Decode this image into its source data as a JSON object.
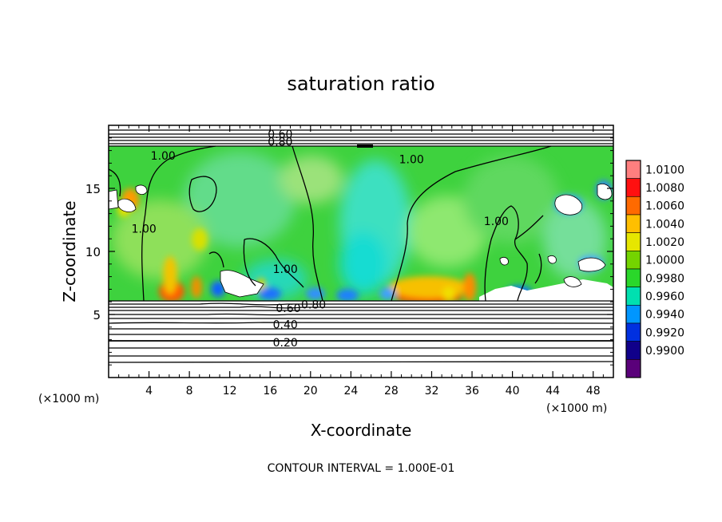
{
  "chart_data": {
    "type": "heatmap",
    "title": "saturation ratio",
    "xlabel": "X-coordinate",
    "ylabel": "Z-coordinate",
    "x_unit_left": "(×1000 m)",
    "x_unit_right": "(×1000 m)",
    "xlim": [
      0,
      50
    ],
    "ylim": [
      0,
      20
    ],
    "x_ticks": [
      4,
      8,
      12,
      16,
      20,
      24,
      28,
      32,
      36,
      40,
      44,
      48
    ],
    "y_ticks": [
      5,
      10,
      15
    ],
    "grid": false,
    "footer": "CONTOUR INTERVAL = 1.000E-01",
    "colorbar": {
      "levels": [
        "1.0100",
        "1.0080",
        "1.0060",
        "1.0040",
        "1.0020",
        "1.0000",
        "0.9980",
        "0.9960",
        "0.9940",
        "0.9920",
        "0.9900"
      ],
      "colors": [
        "#ff7f7f",
        "#ff1010",
        "#ff6a00",
        "#ffbf00",
        "#e6e600",
        "#74d400",
        "#2ad72a",
        "#00e0b0",
        "#0096ff",
        "#0030e0",
        "#10008a",
        "#5a007a"
      ]
    },
    "contour_labels": [
      {
        "text": "0.60",
        "x": 17.0,
        "z": 19.3
      },
      {
        "text": "0.80",
        "x": 17.0,
        "z": 18.7
      },
      {
        "text": "1.00",
        "x": 5.4,
        "z": 17.6
      },
      {
        "text": "1.00",
        "x": 30.0,
        "z": 17.3
      },
      {
        "text": "1.00",
        "x": 3.5,
        "z": 11.8
      },
      {
        "text": "1.00",
        "x": 38.4,
        "z": 12.4
      },
      {
        "text": "1.00",
        "x": 17.5,
        "z": 8.6
      },
      {
        "text": "0.80",
        "x": 20.3,
        "z": 5.8
      },
      {
        "text": "0.60",
        "x": 17.8,
        "z": 5.5
      },
      {
        "text": "0.40",
        "x": 17.5,
        "z": 4.2
      },
      {
        "text": "0.20",
        "x": 17.5,
        "z": 2.8
      }
    ],
    "cloud_layer_z": [
      6.2,
      18.2
    ]
  }
}
